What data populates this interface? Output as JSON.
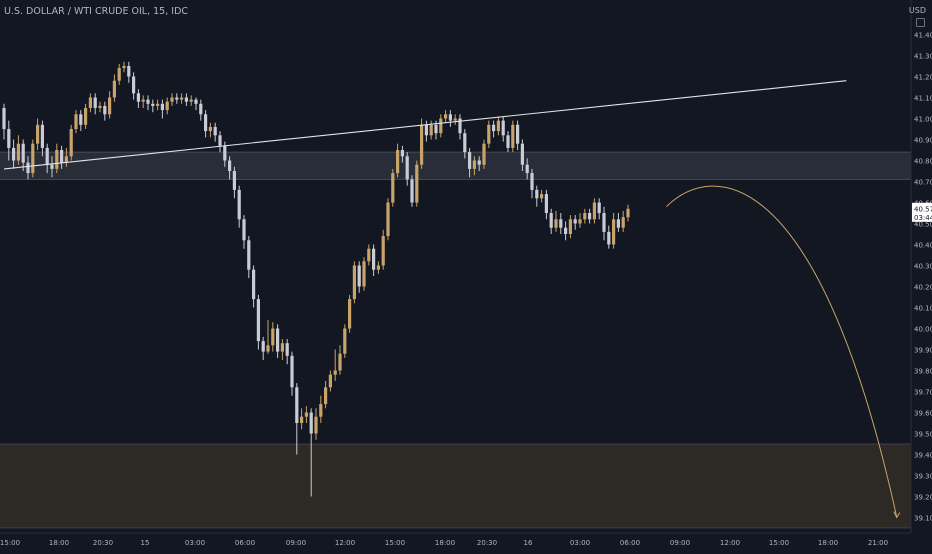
{
  "header": {
    "title": "U.S. DOLLAR / WTI CRUDE OIL, 15, IDC",
    "currency": "USD"
  },
  "price_axis": {
    "last_price": "40.57",
    "countdown": "03:44",
    "last_price_color": "#e8e8e8"
  },
  "colors": {
    "background": "#131722",
    "up_candle": "#c8a46a",
    "down_candle": "#c9ccd6",
    "trendline": "#e0e3eb",
    "projection_arrow": "#c8a46a",
    "resistance_zone": "#2a2e39",
    "support_zone": "#2e2a25"
  },
  "chart_data": {
    "type": "candlestick",
    "title": "U.S. DOLLAR / WTI CRUDE OIL, 15, IDC",
    "ylim": [
      39.05,
      41.45
    ],
    "y_ticks": [
      "41.40",
      "41.30",
      "41.20",
      "41.10",
      "41.00",
      "40.90",
      "40.80",
      "40.70",
      "40.60",
      "40.50",
      "40.40",
      "40.30",
      "40.20",
      "40.10",
      "40.00",
      "39.90",
      "39.80",
      "39.70",
      "39.60",
      "39.50",
      "39.40",
      "39.30",
      "39.20",
      "39.10"
    ],
    "x_ticks": [
      "15:00",
      "18:00",
      "20:30",
      "15",
      "03:00",
      "06:00",
      "09:00",
      "12:00",
      "15:00",
      "18:00",
      "20:30",
      "16",
      "03:00",
      "06:00",
      "09:00",
      "12:00",
      "15:00",
      "18:00",
      "21:00"
    ],
    "zones": [
      {
        "name": "resistance",
        "from": 40.71,
        "to": 40.84
      },
      {
        "name": "support",
        "from": 39.05,
        "to": 39.45
      }
    ],
    "trendline": {
      "from": [
        0,
        40.76
      ],
      "to": [
        175.5,
        41.18
      ]
    },
    "projection": {
      "from": [
        138,
        40.58
      ],
      "peak": [
        152,
        40.7
      ],
      "to": [
        186,
        39.1
      ]
    },
    "last_price": 40.57,
    "candles": [
      [
        41.05,
        40.95,
        41.07,
        40.9
      ],
      [
        40.95,
        40.86,
        40.99,
        40.8
      ],
      [
        40.86,
        40.8,
        40.9,
        40.76
      ],
      [
        40.8,
        40.88,
        40.92,
        40.78
      ],
      [
        40.88,
        40.79,
        40.9,
        40.75
      ],
      [
        40.79,
        40.74,
        40.82,
        40.71
      ],
      [
        40.74,
        40.88,
        40.9,
        40.72
      ],
      [
        40.88,
        40.97,
        41.0,
        40.85
      ],
      [
        40.97,
        40.86,
        40.99,
        40.82
      ],
      [
        40.86,
        40.78,
        40.88,
        40.74
      ],
      [
        40.78,
        40.76,
        40.82,
        40.72
      ],
      [
        40.76,
        40.85,
        40.88,
        40.74
      ],
      [
        40.85,
        40.79,
        40.87,
        40.76
      ],
      [
        40.79,
        40.82,
        40.86,
        40.77
      ],
      [
        40.82,
        40.95,
        40.97,
        40.8
      ],
      [
        40.95,
        41.02,
        41.04,
        40.93
      ],
      [
        41.02,
        40.97,
        41.04,
        40.94
      ],
      [
        40.97,
        41.05,
        41.07,
        40.95
      ],
      [
        41.05,
        41.1,
        41.12,
        41.03
      ],
      [
        41.1,
        41.05,
        41.12,
        41.02
      ],
      [
        41.05,
        41.06,
        41.08,
        41.03
      ],
      [
        41.06,
        41.02,
        41.08,
        40.99
      ],
      [
        41.02,
        41.1,
        41.13,
        41.0
      ],
      [
        41.1,
        41.18,
        41.21,
        41.08
      ],
      [
        41.18,
        41.24,
        41.26,
        41.16
      ],
      [
        41.24,
        41.25,
        41.27,
        41.22
      ],
      [
        41.25,
        41.2,
        41.27,
        41.17
      ],
      [
        41.2,
        41.12,
        41.22,
        41.09
      ],
      [
        41.12,
        41.08,
        41.14,
        41.05
      ],
      [
        41.08,
        41.09,
        41.11,
        41.05
      ],
      [
        41.09,
        41.07,
        41.11,
        41.04
      ],
      [
        41.07,
        41.06,
        41.09,
        41.03
      ],
      [
        41.06,
        41.07,
        41.09,
        41.04
      ],
      [
        41.07,
        41.04,
        41.09,
        41.0
      ],
      [
        41.04,
        41.08,
        41.1,
        41.02
      ],
      [
        41.08,
        41.1,
        41.12,
        41.06
      ],
      [
        41.1,
        41.09,
        41.12,
        41.07
      ],
      [
        41.09,
        41.1,
        41.12,
        41.07
      ],
      [
        41.1,
        41.08,
        41.12,
        41.06
      ],
      [
        41.08,
        41.09,
        41.11,
        41.06
      ],
      [
        41.09,
        41.07,
        41.1,
        41.04
      ],
      [
        41.07,
        41.02,
        41.09,
        40.99
      ],
      [
        41.02,
        40.94,
        41.04,
        40.91
      ],
      [
        40.94,
        40.96,
        40.98,
        40.91
      ],
      [
        40.96,
        40.92,
        40.98,
        40.89
      ],
      [
        40.92,
        40.87,
        40.94,
        40.84
      ],
      [
        40.87,
        40.8,
        40.89,
        40.77
      ],
      [
        40.8,
        40.75,
        40.82,
        40.71
      ],
      [
        40.75,
        40.66,
        40.77,
        40.62
      ],
      [
        40.66,
        40.52,
        40.68,
        40.48
      ],
      [
        40.52,
        40.42,
        40.54,
        40.38
      ],
      [
        40.42,
        40.28,
        40.44,
        40.24
      ],
      [
        40.28,
        40.14,
        40.3,
        40.1
      ],
      [
        40.14,
        39.94,
        40.16,
        39.9
      ],
      [
        39.94,
        39.89,
        39.96,
        39.85
      ],
      [
        39.89,
        39.92,
        40.04,
        39.88
      ],
      [
        39.92,
        40.0,
        40.03,
        39.89
      ],
      [
        40.0,
        39.89,
        40.02,
        39.86
      ],
      [
        39.89,
        39.93,
        39.95,
        39.85
      ],
      [
        39.93,
        39.87,
        39.95,
        39.83
      ],
      [
        39.87,
        39.72,
        39.89,
        39.68
      ],
      [
        39.72,
        39.55,
        39.74,
        39.4
      ],
      [
        39.55,
        39.58,
        39.62,
        39.52
      ],
      [
        39.58,
        39.6,
        39.63,
        39.55
      ],
      [
        39.6,
        39.5,
        39.62,
        39.2
      ],
      [
        39.5,
        39.58,
        39.62,
        39.47
      ],
      [
        39.58,
        39.64,
        39.68,
        39.55
      ],
      [
        39.64,
        39.72,
        39.75,
        39.62
      ],
      [
        39.72,
        39.78,
        39.8,
        39.7
      ],
      [
        39.78,
        39.8,
        39.9,
        39.75
      ],
      [
        39.8,
        39.88,
        39.92,
        39.78
      ],
      [
        39.88,
        40.0,
        40.02,
        39.86
      ],
      [
        40.0,
        40.14,
        40.16,
        39.98
      ],
      [
        40.14,
        40.3,
        40.32,
        40.12
      ],
      [
        40.3,
        40.2,
        40.32,
        40.17
      ],
      [
        40.2,
        40.32,
        40.34,
        40.18
      ],
      [
        40.32,
        40.38,
        40.4,
        40.3
      ],
      [
        40.38,
        40.28,
        40.4,
        40.25
      ],
      [
        40.28,
        40.3,
        40.32,
        40.26
      ],
      [
        40.3,
        40.44,
        40.47,
        40.28
      ],
      [
        40.44,
        40.6,
        40.62,
        40.42
      ],
      [
        40.6,
        40.74,
        40.76,
        40.58
      ],
      [
        40.74,
        40.85,
        40.88,
        40.72
      ],
      [
        40.85,
        40.82,
        40.87,
        40.79
      ],
      [
        40.82,
        40.71,
        40.84,
        40.68
      ],
      [
        40.71,
        40.6,
        40.73,
        40.58
      ],
      [
        40.6,
        40.78,
        40.8,
        40.58
      ],
      [
        40.78,
        40.97,
        41.0,
        40.76
      ],
      [
        40.97,
        40.92,
        40.99,
        40.89
      ],
      [
        40.92,
        40.97,
        40.99,
        40.9
      ],
      [
        40.97,
        40.93,
        40.99,
        40.9
      ],
      [
        40.93,
        41.0,
        41.02,
        40.91
      ],
      [
        41.0,
        41.02,
        41.04,
        40.98
      ],
      [
        41.02,
        40.99,
        41.04,
        40.96
      ],
      [
        40.99,
        41.0,
        41.02,
        40.97
      ],
      [
        41.0,
        40.93,
        41.02,
        40.9
      ],
      [
        40.93,
        40.84,
        40.95,
        40.81
      ],
      [
        40.84,
        40.76,
        40.86,
        40.72
      ],
      [
        40.76,
        40.8,
        40.82,
        40.73
      ],
      [
        40.8,
        40.78,
        40.82,
        40.75
      ],
      [
        40.78,
        40.88,
        40.9,
        40.76
      ],
      [
        40.88,
        40.97,
        40.99,
        40.86
      ],
      [
        40.97,
        40.94,
        40.99,
        40.91
      ],
      [
        40.94,
        40.99,
        41.01,
        40.92
      ],
      [
        40.99,
        40.92,
        41.01,
        40.89
      ],
      [
        40.92,
        40.86,
        40.94,
        40.84
      ],
      [
        40.86,
        40.97,
        40.99,
        40.84
      ],
      [
        40.97,
        40.88,
        40.99,
        40.85
      ],
      [
        40.88,
        40.78,
        40.9,
        40.75
      ],
      [
        40.78,
        40.74,
        40.81,
        40.71
      ],
      [
        40.74,
        40.66,
        40.76,
        40.62
      ],
      [
        40.66,
        40.62,
        40.68,
        40.58
      ],
      [
        40.62,
        40.64,
        40.66,
        40.6
      ],
      [
        40.64,
        40.55,
        40.66,
        40.52
      ],
      [
        40.55,
        40.48,
        40.57,
        40.45
      ],
      [
        40.48,
        40.52,
        40.56,
        40.46
      ],
      [
        40.52,
        40.48,
        40.55,
        40.45
      ],
      [
        40.48,
        40.45,
        40.51,
        40.42
      ],
      [
        40.45,
        40.52,
        40.54,
        40.43
      ],
      [
        40.52,
        40.5,
        40.54,
        40.47
      ],
      [
        40.5,
        40.52,
        40.55,
        40.48
      ],
      [
        40.52,
        40.55,
        40.57,
        40.5
      ],
      [
        40.55,
        40.52,
        40.57,
        40.5
      ],
      [
        40.52,
        40.6,
        40.62,
        40.5
      ],
      [
        40.6,
        40.55,
        40.62,
        40.52
      ],
      [
        40.55,
        40.46,
        40.58,
        40.42
      ],
      [
        40.46,
        40.4,
        40.49,
        40.38
      ],
      [
        40.4,
        40.52,
        40.55,
        40.38
      ],
      [
        40.52,
        40.48,
        40.55,
        40.46
      ],
      [
        40.48,
        40.53,
        40.56,
        40.46
      ],
      [
        40.53,
        40.57,
        40.59,
        40.51
      ]
    ]
  }
}
